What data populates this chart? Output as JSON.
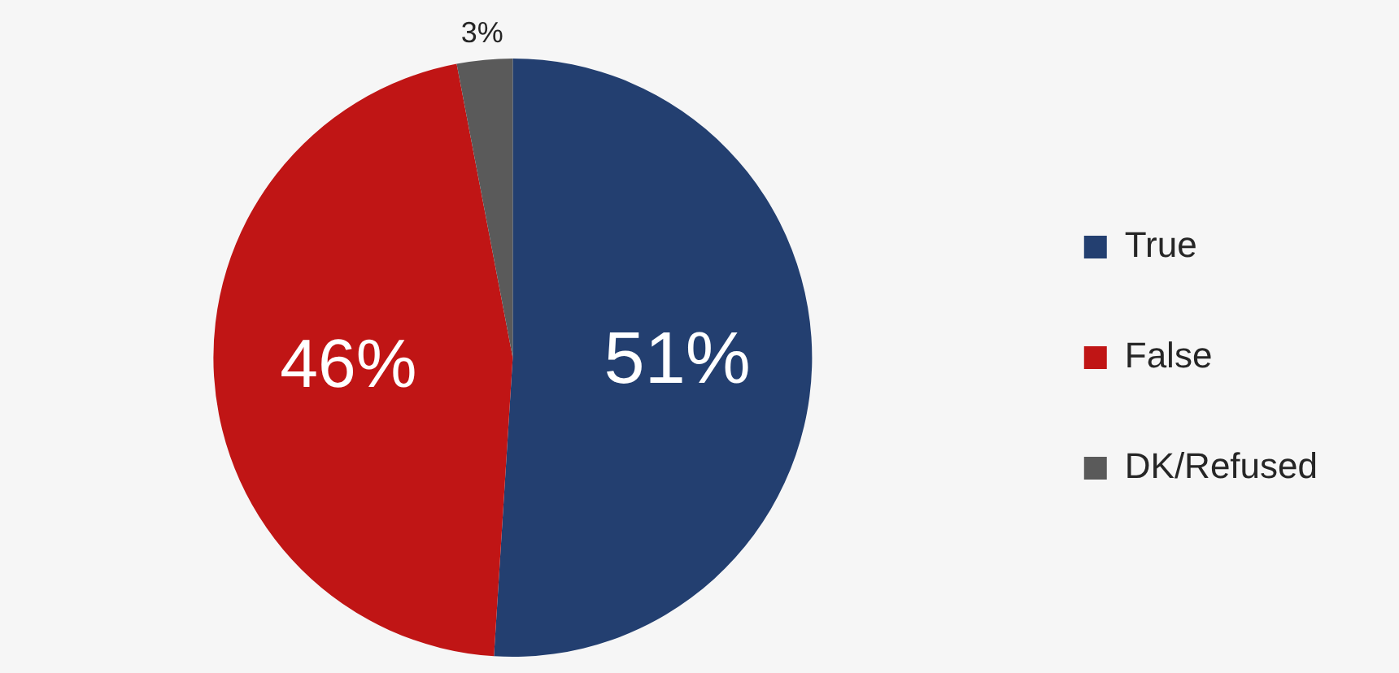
{
  "chart_data": {
    "type": "pie",
    "categories": [
      "True",
      "False",
      "DK/Refused"
    ],
    "values": [
      51,
      46,
      3
    ],
    "value_labels": [
      "51%",
      "46%",
      "3%"
    ],
    "colors": [
      "#233f70",
      "#c01515",
      "#5a5a5a"
    ],
    "legend": "right"
  }
}
